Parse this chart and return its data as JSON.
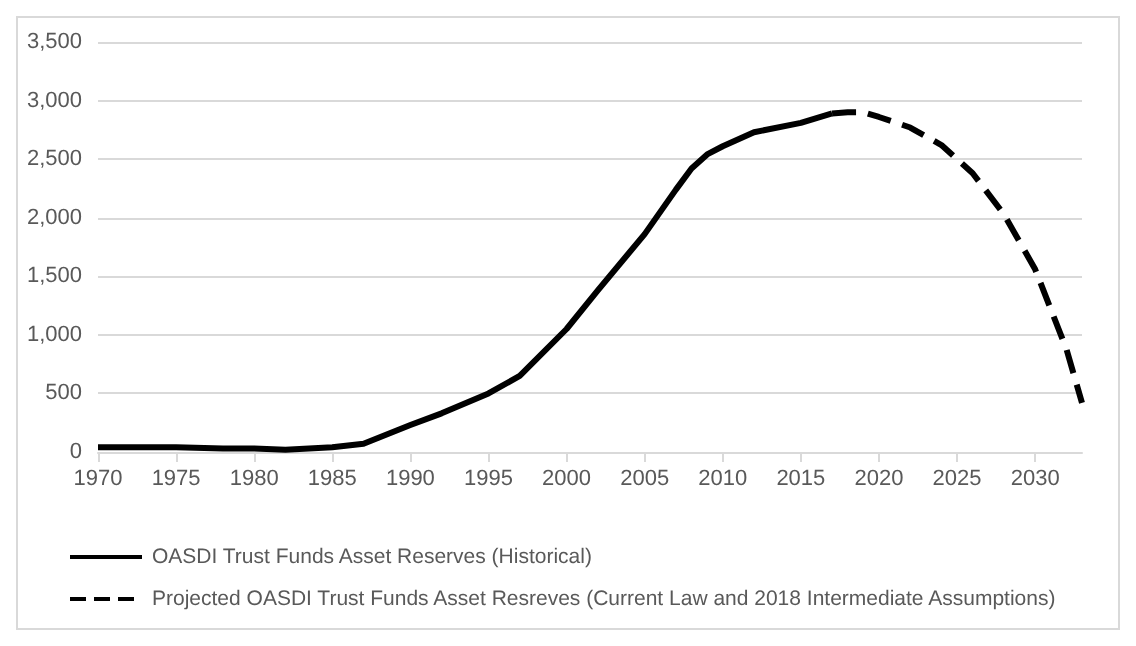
{
  "chart_data": {
    "type": "line",
    "xlim": [
      1970,
      2033
    ],
    "xticks": [
      1970,
      1975,
      1980,
      1985,
      1990,
      1995,
      2000,
      2005,
      2010,
      2015,
      2020,
      2025,
      2030
    ],
    "ylim": [
      0,
      3500
    ],
    "yticks": [
      {
        "value": 0,
        "label": "0"
      },
      {
        "value": 500,
        "label": "500"
      },
      {
        "value": 1000,
        "label": "1,000"
      },
      {
        "value": 1500,
        "label": "1,500"
      },
      {
        "value": 2000,
        "label": "2,000"
      },
      {
        "value": 2500,
        "label": "2,500"
      },
      {
        "value": 3000,
        "label": "3,000"
      },
      {
        "value": 3500,
        "label": "3,500"
      }
    ],
    "grid": "y",
    "legend": "bottom",
    "marker": "none",
    "series": [
      {
        "name": "OASDI Trust Funds Asset Reserves (Historical)",
        "color": "#000000",
        "line_style": "solid",
        "x": [
          1970,
          1975,
          1978,
          1980,
          1982,
          1985,
          1987,
          1990,
          1992,
          1995,
          1997,
          2000,
          2002,
          2005,
          2007,
          2008,
          2009,
          2010,
          2012,
          2015,
          2017
        ],
        "values": [
          40,
          40,
          30,
          30,
          20,
          40,
          70,
          230,
          330,
          500,
          650,
          1050,
          1380,
          1860,
          2240,
          2420,
          2540,
          2610,
          2730,
          2810,
          2890
        ]
      },
      {
        "name": "Projected OASDI Trust Funds Asset Resreves (Current Law and 2018 Intermediate Assumptions)",
        "color": "#000000",
        "line_style": "dashed",
        "x": [
          2017,
          2018,
          2019,
          2020,
          2022,
          2024,
          2026,
          2028,
          2030,
          2032,
          2033
        ],
        "values": [
          2890,
          2900,
          2900,
          2860,
          2770,
          2620,
          2380,
          2030,
          1560,
          880,
          420
        ]
      }
    ]
  }
}
